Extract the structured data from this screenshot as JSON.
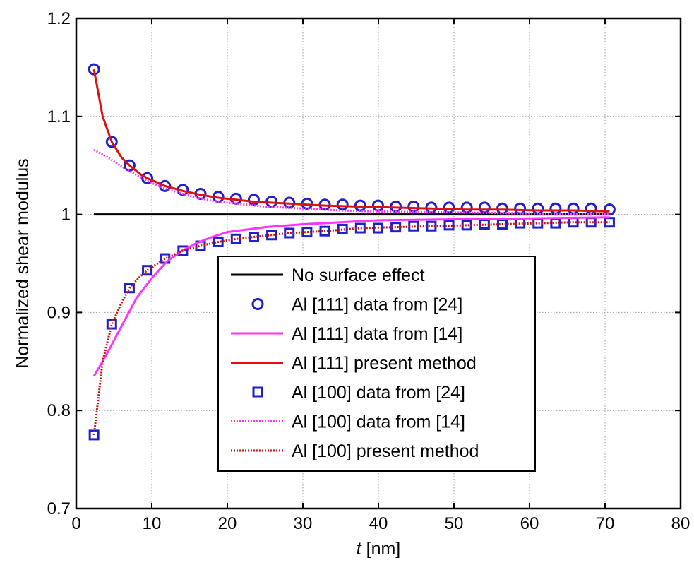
{
  "chart_data": {
    "type": "line",
    "xlabel": {
      "italic": "t",
      "rest": " [nm]"
    },
    "ylabel": "Normalized shear modulus",
    "xlim": [
      0,
      80
    ],
    "ylim": [
      0.7,
      1.2
    ],
    "xticks": [
      0,
      10,
      20,
      30,
      40,
      50,
      60,
      70,
      80
    ],
    "yticks": [
      0.7,
      0.8,
      0.9,
      1,
      1.1,
      1.2
    ],
    "xtick_labels": [
      "0",
      "10",
      "20",
      "30",
      "40",
      "50",
      "60",
      "70",
      "80"
    ],
    "ytick_labels": [
      "0.7",
      "0.8",
      "0.9",
      "1",
      "1.1",
      "1.2"
    ],
    "grid": true,
    "legend_position": "center-bottom",
    "series": [
      {
        "name": "No surface effect",
        "style": "line",
        "color": "#000000",
        "dash": "solid",
        "x": [
          2.35,
          70.6
        ],
        "y": [
          1.0,
          1.0
        ]
      },
      {
        "name": "Al [111] data from [24]",
        "style": "circle",
        "color": "#1f1fcc",
        "x": [
          2.35,
          4.7,
          7.05,
          9.4,
          11.75,
          14.1,
          16.45,
          18.8,
          21.15,
          23.5,
          25.85,
          28.2,
          30.55,
          32.9,
          35.25,
          37.6,
          39.95,
          42.3,
          44.65,
          47.0,
          49.35,
          51.7,
          54.05,
          56.4,
          58.75,
          61.1,
          63.45,
          65.8,
          68.15,
          70.6
        ],
        "y": [
          1.148,
          1.074,
          1.05,
          1.037,
          1.029,
          1.025,
          1.021,
          1.018,
          1.016,
          1.015,
          1.013,
          1.012,
          1.011,
          1.01,
          1.01,
          1.009,
          1.009,
          1.008,
          1.008,
          1.007,
          1.007,
          1.007,
          1.007,
          1.006,
          1.006,
          1.006,
          1.006,
          1.006,
          1.006,
          1.005
        ]
      },
      {
        "name": "Al [111] data from [14]",
        "style": "line",
        "color": "#ff33ff",
        "dash": "solid",
        "x": [
          2.35,
          4.0,
          6.0,
          8.0,
          10.0,
          12.0,
          14.0,
          16.0,
          18.0,
          20.0,
          25.0,
          30.0,
          35.0,
          40.0,
          50.0,
          60.0,
          70.6
        ],
        "y": [
          0.835,
          0.857,
          0.886,
          0.915,
          0.935,
          0.952,
          0.963,
          0.971,
          0.977,
          0.982,
          0.987,
          0.99,
          0.992,
          0.994,
          0.995,
          0.996,
          0.997
        ]
      },
      {
        "name": "Al [111] present method",
        "style": "line",
        "color": "#dd1111",
        "dash": "solid",
        "x": [
          2.35,
          3.5,
          4.7,
          6.0,
          7.05,
          8.5,
          9.4,
          11.75,
          14.1,
          16.45,
          18.8,
          21.15,
          23.5,
          28.2,
          32.9,
          37.6,
          42.3,
          47.0,
          51.7,
          56.4,
          61.1,
          65.8,
          70.6
        ],
        "y": [
          1.148,
          1.1,
          1.074,
          1.058,
          1.05,
          1.041,
          1.037,
          1.029,
          1.024,
          1.02,
          1.017,
          1.015,
          1.013,
          1.011,
          1.009,
          1.008,
          1.007,
          1.006,
          1.005,
          1.005,
          1.004,
          1.004,
          1.003
        ]
      },
      {
        "name": "Al [100] data from [24]",
        "style": "square",
        "color": "#1f1fcc",
        "x": [
          2.35,
          4.7,
          7.05,
          9.4,
          11.75,
          14.1,
          16.45,
          18.8,
          21.15,
          23.5,
          25.85,
          28.2,
          30.55,
          32.9,
          35.25,
          37.6,
          39.95,
          42.3,
          44.65,
          47.0,
          49.35,
          51.7,
          54.05,
          56.4,
          58.75,
          61.1,
          63.45,
          65.8,
          68.15,
          70.6
        ],
        "y": [
          0.775,
          0.888,
          0.925,
          0.943,
          0.955,
          0.963,
          0.968,
          0.972,
          0.975,
          0.977,
          0.979,
          0.981,
          0.982,
          0.983,
          0.985,
          0.986,
          0.986,
          0.987,
          0.988,
          0.988,
          0.989,
          0.989,
          0.99,
          0.99,
          0.991,
          0.991,
          0.991,
          0.992,
          0.992,
          0.992
        ]
      },
      {
        "name": "Al [100] data from [14]",
        "style": "line",
        "color": "#ff33ff",
        "dash": "dotted",
        "x": [
          2.35,
          4.0,
          6.0,
          8.0,
          10.0,
          12.0,
          14.0,
          16.0,
          18.0,
          20.0,
          25.0,
          30.0,
          35.0,
          40.0,
          50.0,
          60.0,
          70.6
        ],
        "y": [
          1.066,
          1.059,
          1.049,
          1.04,
          1.032,
          1.026,
          1.021,
          1.017,
          1.014,
          1.012,
          1.008,
          1.006,
          1.004,
          1.003,
          1.002,
          1.001,
          1.0
        ]
      },
      {
        "name": "Al [100] present method",
        "style": "line",
        "color": "#cc1111",
        "dash": "dotted",
        "x": [
          2.35,
          3.5,
          4.7,
          6.0,
          7.05,
          8.5,
          9.4,
          11.75,
          14.1,
          16.45,
          18.8,
          21.15,
          23.5,
          28.2,
          32.9,
          37.6,
          42.3,
          47.0,
          51.7,
          56.4,
          61.1,
          65.8,
          70.6
        ],
        "y": [
          0.775,
          0.85,
          0.888,
          0.91,
          0.925,
          0.937,
          0.943,
          0.955,
          0.963,
          0.968,
          0.972,
          0.975,
          0.977,
          0.981,
          0.983,
          0.986,
          0.987,
          0.988,
          0.989,
          0.99,
          0.991,
          0.992,
          0.992
        ]
      }
    ]
  }
}
